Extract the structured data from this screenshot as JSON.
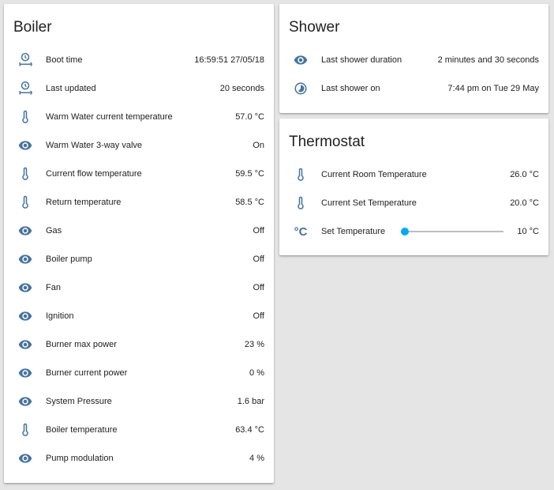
{
  "colors": {
    "icon": "#44739e",
    "accent": "#03a9f4",
    "background": "#e5e5e5"
  },
  "cards": [
    {
      "id": "boiler",
      "title": "Boiler",
      "rows": [
        {
          "icon": "clock-timer-icon",
          "label": "Boot time",
          "value": "16:59:51 27/05/18"
        },
        {
          "icon": "clock-timer-icon",
          "label": "Last updated",
          "value": "20 seconds"
        },
        {
          "icon": "thermometer-icon",
          "label": "Warm Water current temperature",
          "value": "57.0 °C"
        },
        {
          "icon": "eye-icon",
          "label": "Warm Water 3-way valve",
          "value": "On"
        },
        {
          "icon": "thermometer-icon",
          "label": "Current flow temperature",
          "value": "59.5 °C"
        },
        {
          "icon": "thermometer-icon",
          "label": "Return temperature",
          "value": "58.5 °C"
        },
        {
          "icon": "eye-icon",
          "label": "Gas",
          "value": "Off"
        },
        {
          "icon": "eye-icon",
          "label": "Boiler pump",
          "value": "Off"
        },
        {
          "icon": "eye-icon",
          "label": "Fan",
          "value": "Off"
        },
        {
          "icon": "eye-icon",
          "label": "Ignition",
          "value": "Off"
        },
        {
          "icon": "eye-icon",
          "label": "Burner max power",
          "value": "23 %"
        },
        {
          "icon": "eye-icon",
          "label": "Burner current power",
          "value": "0 %"
        },
        {
          "icon": "eye-icon",
          "label": "System Pressure",
          "value": "1.6 bar"
        },
        {
          "icon": "thermometer-icon",
          "label": "Boiler temperature",
          "value": "63.4 °C"
        },
        {
          "icon": "eye-icon",
          "label": "Pump modulation",
          "value": "4 %"
        }
      ]
    },
    {
      "id": "shower",
      "title": "Shower",
      "rows": [
        {
          "icon": "eye-icon",
          "label": "Last shower duration",
          "value": "2 minutes and 30 seconds"
        },
        {
          "icon": "clock-icon",
          "label": "Last shower on",
          "value": "7:44 pm on Tue 29 May"
        }
      ]
    },
    {
      "id": "thermo",
      "title": "Thermostat",
      "rows": [
        {
          "icon": "thermometer-icon",
          "label": "Current Room Temperature",
          "value": "26.0 °C"
        },
        {
          "icon": "thermometer-icon",
          "label": "Current Set Temperature",
          "value": "20.0 °C"
        },
        {
          "icon": "celsius-icon",
          "label": "Set Temperature",
          "value": "10 °C",
          "slider": 0,
          "icon_text": "°C"
        }
      ]
    }
  ]
}
